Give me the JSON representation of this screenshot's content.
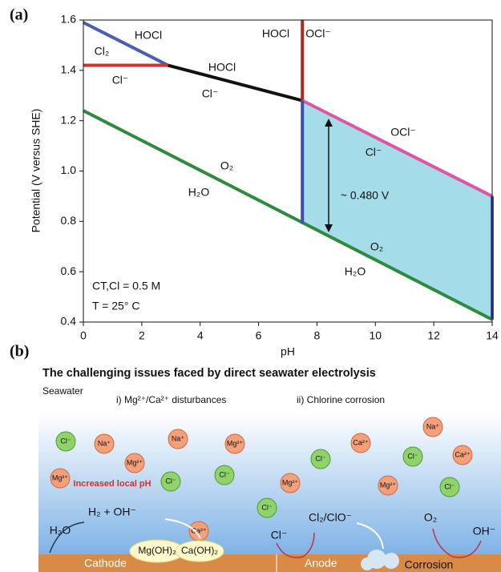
{
  "chart_data": {
    "type": "line",
    "panel_label": "(a)",
    "xlabel": "pH",
    "ylabel": "Potential (V versus SHE)",
    "xlim": [
      0,
      14
    ],
    "ylim": [
      0.4,
      1.6
    ],
    "xticks": [
      0,
      2,
      4,
      6,
      8,
      10,
      12,
      14
    ],
    "yticks": [
      0.4,
      0.6,
      0.8,
      {
        "value": 1,
        "label": "1.0"
      },
      1.2,
      1.4,
      1.6
    ],
    "series": [
      {
        "color": "#4a5fb0",
        "x": [
          0,
          2.9
        ],
        "values": [
          1.59,
          1.42
        ]
      },
      {
        "color": "#d0312d",
        "x": [
          0,
          2.9
        ],
        "values": [
          1.42,
          1.42
        ]
      },
      {
        "color": "#111111",
        "x": [
          2.9,
          7.5
        ],
        "values": [
          1.42,
          1.28
        ]
      },
      {
        "color": "#b5261e",
        "x": [
          7.5,
          7.5
        ],
        "values": [
          1.6,
          1.28
        ]
      },
      {
        "color": "#e0559f",
        "x": [
          7.5,
          14
        ],
        "values": [
          1.28,
          0.9
        ]
      },
      {
        "color": "#2e8b3e",
        "x": [
          0,
          14
        ],
        "values": [
          1.24,
          0.41
        ]
      },
      {
        "color": "#3a4fb0",
        "x": [
          7.5,
          7.5
        ],
        "values": [
          1.28,
          0.79
        ]
      },
      {
        "color": "#3a4fb0",
        "x": [
          14,
          14
        ],
        "values": [
          0.9,
          0.41
        ]
      }
    ],
    "region": {
      "color": "#a4dde9",
      "x": [
        7.5,
        14,
        14,
        7.5
      ],
      "values": [
        1.28,
        0.9,
        0.41,
        0.79
      ]
    },
    "annotations": [
      "HOCl",
      "Cl₂",
      "Cl⁻",
      "HOCl",
      "Cl⁻",
      "HOCl",
      "OCl⁻",
      "OCl⁻",
      "Cl⁻",
      "O₂",
      "H₂O",
      "~ 0.480 V",
      "O₂",
      "H₂O",
      "CT,Cl = 0.5 M",
      "T = 25° C"
    ]
  },
  "diagram": {
    "panel_label": "(b)",
    "title": "The challenging issues faced by direct seawater electrolysis",
    "seawater": "Seawater",
    "section_1": "i) Mg²⁺/Ca²⁺ disturbances",
    "section_2": "ii) Chlorine corrosion",
    "ions": [
      "Cl⁻",
      "Na⁺",
      "Na⁺",
      "Mg²⁺",
      "Mg²⁺",
      "Mg²⁺",
      "Cl⁻",
      "Cl⁻",
      "Ca²⁺",
      "Na⁺",
      "Ca²⁺",
      "Cl⁻",
      "Cl⁻",
      "Ca²⁺",
      "Mg²⁺",
      "Mg²⁺",
      "Cl⁻",
      "Cl⁻"
    ],
    "local_ph": "Increased local pH",
    "h2_oh": "H₂ + OH⁻",
    "h2o": "H₂O",
    "mgoh": "Mg(OH)₂",
    "caoh": "Ca(OH)₂",
    "cl": "Cl⁻",
    "cl2": "Cl₂/ClO⁻",
    "o2": "O₂",
    "oh": "OH⁻",
    "cathode": "Cathode",
    "anode": "Anode",
    "corrosion": "Corrosion"
  }
}
